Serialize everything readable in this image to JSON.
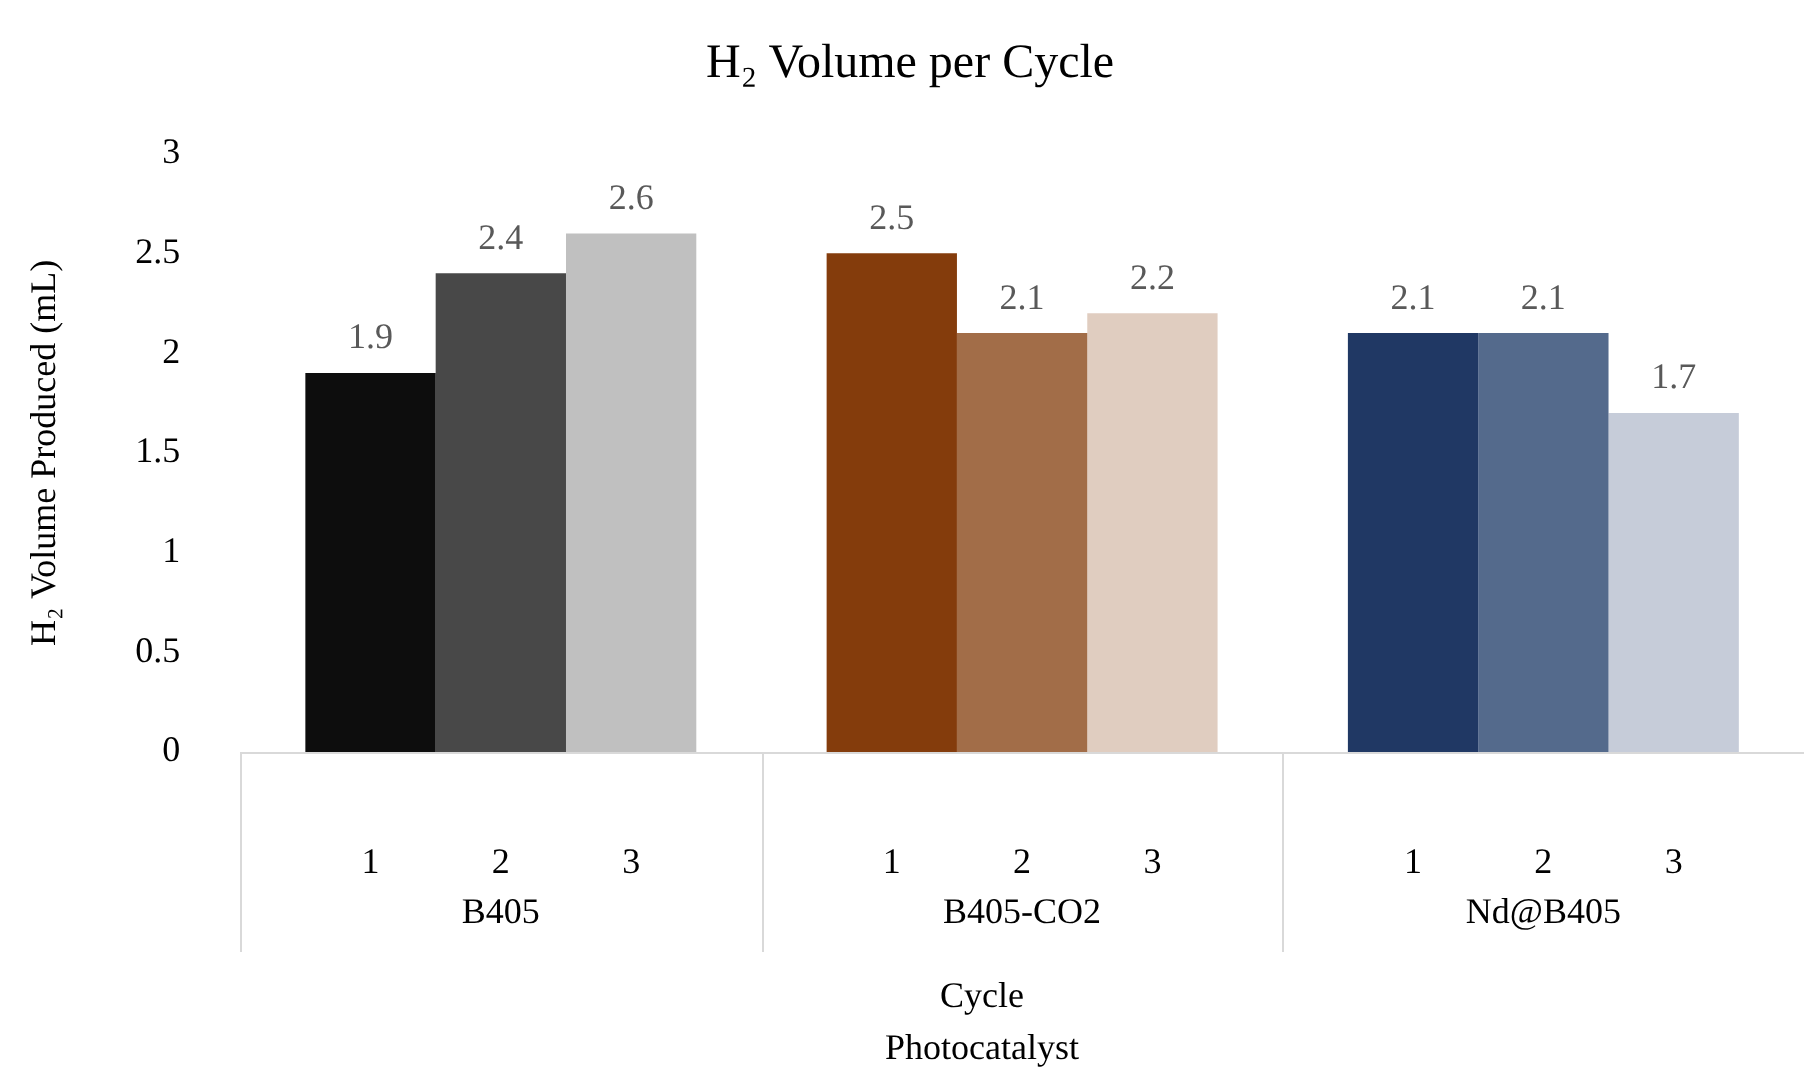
{
  "chart_data": {
    "type": "bar",
    "title": "H₂ Volume per Cycle",
    "ylabel": "H₂ Volume Produced (mL)",
    "annotations": [
      "Cycle",
      "Photocatalyst"
    ],
    "categories": [
      "B405",
      "B405-CO2",
      "Nd@B405"
    ],
    "series": [
      {
        "name": "1",
        "colors": [
          "#0d0d0d",
          "#843c0c",
          "#203864"
        ],
        "values": [
          1.9,
          2.5,
          2.1
        ]
      },
      {
        "name": "2",
        "colors": [
          "#484848",
          "#a26d48",
          "#546a8c"
        ],
        "values": [
          2.4,
          2.1,
          2.1
        ]
      },
      {
        "name": "3",
        "colors": [
          "#c0c0c0",
          "#e0cdc0",
          "#c6ccd9"
        ],
        "values": [
          2.6,
          2.2,
          1.7
        ]
      }
    ],
    "ylim": [
      0,
      3
    ],
    "yticks": [
      0,
      0.5,
      1,
      1.5,
      2,
      2.5,
      3
    ],
    "grid": false,
    "legend": false,
    "data_labels": true
  }
}
